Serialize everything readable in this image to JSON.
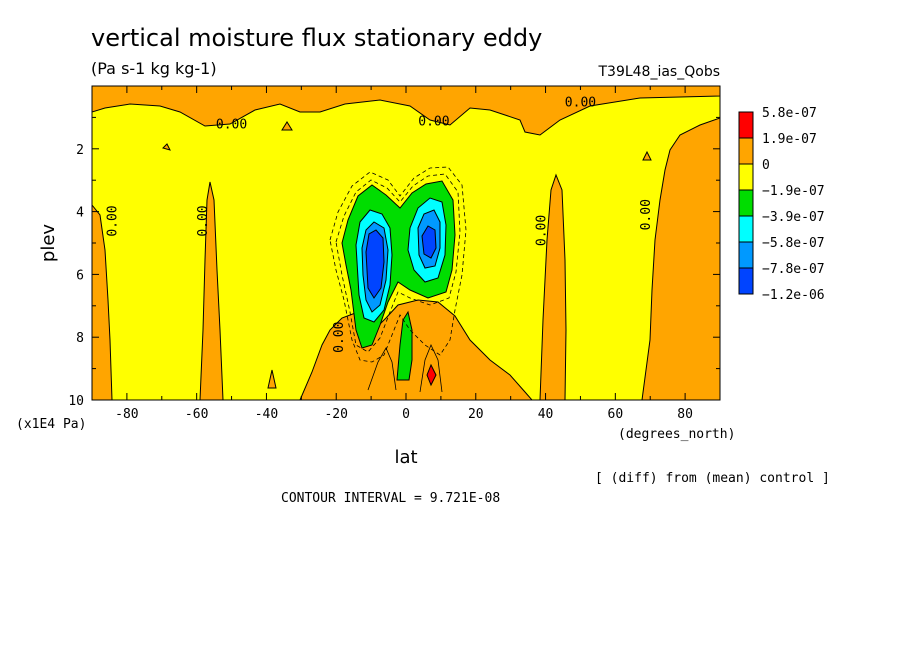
{
  "chart_data": {
    "type": "filled-contour",
    "title": "vertical moisture flux stationary eddy",
    "units": "(Pa s-1 kg kg-1)",
    "run_label": "T39L48_ias_Qobs",
    "xlabel": "lat",
    "x_units": "(degrees_north)",
    "ylabel": "plev",
    "y_units": "(x1E4 Pa)",
    "xlim": [
      -90,
      90
    ],
    "ylim": [
      10,
      0
    ],
    "x_ticks": [
      -80,
      -60,
      -40,
      -20,
      0,
      20,
      40,
      60,
      80
    ],
    "y_ticks": [
      2,
      4,
      6,
      8,
      10
    ],
    "contour_interval_text": "CONTOUR INTERVAL = 9.721E-08",
    "footnote": "[ (diff) from (mean) control ]",
    "colorbar": {
      "labels": [
        "5.8e-07",
        "1.9e-07",
        "0",
        "−1.9e-07",
        "−3.9e-07",
        "−5.8e-07",
        "−7.8e-07",
        "−1.2e-06"
      ],
      "colors": [
        "#ff0000",
        "#ffa500",
        "#ffff00",
        "#00dd00",
        "#00ffff",
        "#0099ff",
        "#0044ff"
      ]
    },
    "contour_labels": [
      {
        "text": "0.00",
        "lat": -50,
        "plev": 1.2
      },
      {
        "text": "0.00",
        "lat": 8,
        "plev": 1.1
      },
      {
        "text": "0.00",
        "lat": 50,
        "plev": 0.5
      },
      {
        "text": "0.00",
        "lat": -83,
        "plev": 4.3
      },
      {
        "text": "0.00",
        "lat": -57,
        "plev": 4.3
      },
      {
        "text": "0.00",
        "lat": 40,
        "plev": 4.6
      },
      {
        "text": "0.00",
        "lat": 70,
        "plev": 4.1
      },
      {
        "text": "0.00",
        "lat": -18,
        "plev": 8.0
      }
    ]
  }
}
